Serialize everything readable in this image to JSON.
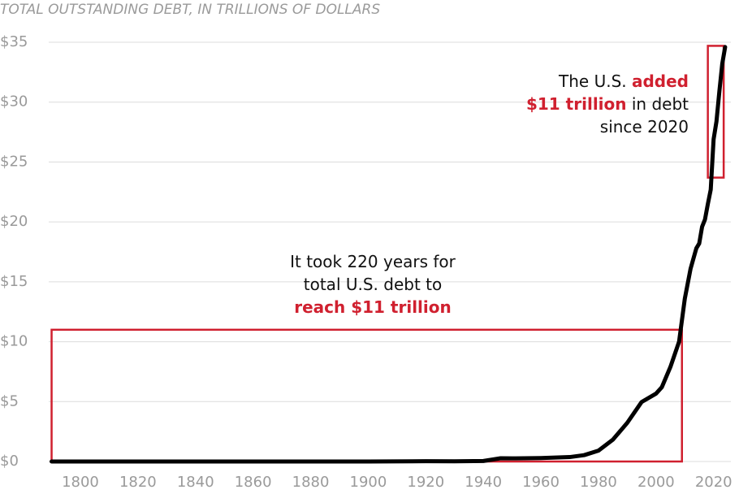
{
  "chart_data": {
    "type": "line",
    "title": "TOTAL OUTSTANDING DEBT, IN TRILLIONS OF DOLLARS",
    "x": [
      1790,
      1800,
      1820,
      1840,
      1860,
      1870,
      1900,
      1920,
      1930,
      1940,
      1946,
      1950,
      1960,
      1970,
      1975,
      1980,
      1985,
      1990,
      1995,
      2000,
      2002,
      2005,
      2008,
      2010,
      2012,
      2014,
      2015,
      2016,
      2017,
      2018,
      2019,
      2020,
      2021,
      2022,
      2023,
      2024
    ],
    "values": [
      8e-05,
      8e-05,
      9e-05,
      4e-06,
      6e-05,
      0.0024,
      0.0012,
      0.024,
      0.016,
      0.043,
      0.27,
      0.26,
      0.29,
      0.37,
      0.53,
      0.91,
      1.82,
      3.23,
      4.97,
      5.67,
      6.2,
      7.9,
      10.0,
      13.6,
      16.1,
      17.8,
      18.2,
      19.6,
      20.2,
      21.5,
      22.7,
      26.9,
      28.4,
      30.9,
      33.2,
      34.6
    ],
    "color": "#000000",
    "xlim": [
      1789,
      2026
    ],
    "xticks": [
      1800,
      1820,
      1840,
      1860,
      1880,
      1900,
      1920,
      1940,
      1960,
      1980,
      2000,
      2020
    ],
    "ylim": [
      0,
      35
    ],
    "yticks": [
      {
        "value": 0,
        "label": "$0"
      },
      {
        "value": 5,
        "label": "$5"
      },
      {
        "value": 10,
        "label": "$10"
      },
      {
        "value": 15,
        "label": "$15"
      },
      {
        "value": 20,
        "label": "$20"
      },
      {
        "value": 25,
        "label": "$25"
      },
      {
        "value": 30,
        "label": "$30"
      },
      {
        "value": 35,
        "label": "$35"
      }
    ],
    "grid": true,
    "highlight_color": "#d0202f",
    "highlights": [
      {
        "x": [
          1790,
          2009
        ],
        "y": [
          0,
          11
        ]
      },
      {
        "x": [
          2018,
          2023.5
        ],
        "y": [
          23.7,
          34.7
        ]
      }
    ],
    "annotations": [
      {
        "lines": [
          [
            {
              "text": "It took 220 years for",
              "emphasis": false
            }
          ],
          [
            {
              "text": "total U.S. debt to",
              "emphasis": false
            }
          ],
          [
            {
              "text": "reach $11 trillion",
              "emphasis": true
            }
          ]
        ]
      },
      {
        "lines": [
          [
            {
              "text": "The U.S. ",
              "emphasis": false
            },
            {
              "text": "added",
              "emphasis": true
            }
          ],
          [
            {
              "text": "$11 trillion",
              "emphasis": true
            },
            {
              "text": " in debt",
              "emphasis": false
            }
          ],
          [
            {
              "text": "since 2020",
              "emphasis": false
            }
          ]
        ]
      }
    ]
  }
}
